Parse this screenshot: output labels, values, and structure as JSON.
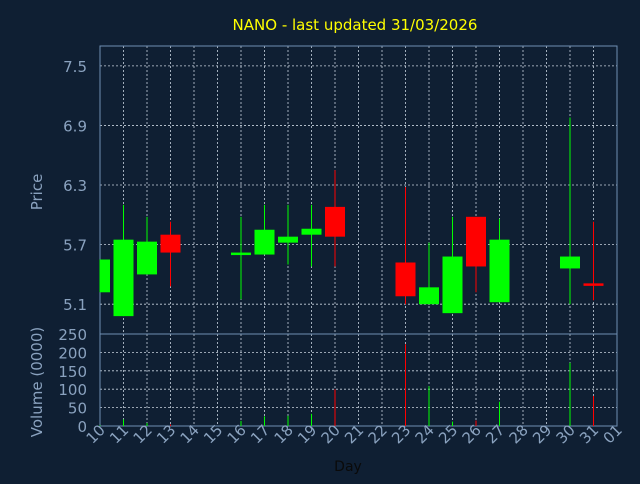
{
  "title": "NANO - last updated 31/03/2026",
  "colors": {
    "background": "#0f1f33",
    "plot_border": "#6f8fb3",
    "grid": "#c8d2de",
    "axis_text": "#8aa2bf",
    "title_text": "#ffff00",
    "xlabel_text": "#0a0a0a",
    "up": "#00ff00",
    "down": "#ff0000"
  },
  "chart_data": [
    {
      "type": "candlestick",
      "ylabel": "Price",
      "ylim": [
        4.8,
        7.7
      ],
      "yticks": [
        5.1,
        5.7,
        6.3,
        6.9,
        7.5
      ],
      "ytick_labels": [
        "5.1",
        "5.7",
        "6.3",
        "6.9",
        "7.5"
      ],
      "grid": true,
      "candles": [
        {
          "x": 10,
          "open": 5.22,
          "close": 5.55,
          "high": 5.55,
          "low": 5.22,
          "direction": "up"
        },
        {
          "x": 11,
          "open": 4.98,
          "close": 5.75,
          "high": 6.1,
          "low": 4.98,
          "direction": "up"
        },
        {
          "x": 12,
          "open": 5.4,
          "close": 5.73,
          "high": 5.98,
          "low": 5.4,
          "direction": "up"
        },
        {
          "x": 13,
          "open": 5.8,
          "close": 5.62,
          "high": 5.93,
          "low": 5.28,
          "direction": "down"
        },
        {
          "x": 16,
          "open": 5.6,
          "close": 5.62,
          "high": 5.98,
          "low": 5.15,
          "direction": "up"
        },
        {
          "x": 17,
          "open": 5.6,
          "close": 5.85,
          "high": 6.1,
          "low": 5.6,
          "direction": "up"
        },
        {
          "x": 18,
          "open": 5.72,
          "close": 5.78,
          "high": 6.1,
          "low": 5.5,
          "direction": "up"
        },
        {
          "x": 19,
          "open": 5.8,
          "close": 5.86,
          "high": 6.1,
          "low": 5.48,
          "direction": "up"
        },
        {
          "x": 20,
          "open": 6.08,
          "close": 5.78,
          "high": 6.45,
          "low": 5.48,
          "direction": "down"
        },
        {
          "x": 23,
          "open": 5.52,
          "close": 5.18,
          "high": 6.28,
          "low": 5.1,
          "direction": "down"
        },
        {
          "x": 24,
          "open": 5.1,
          "close": 5.27,
          "high": 5.72,
          "low": 5.1,
          "direction": "up"
        },
        {
          "x": 25,
          "open": 5.01,
          "close": 5.58,
          "high": 5.98,
          "low": 5.01,
          "direction": "up"
        },
        {
          "x": 26,
          "open": 5.98,
          "close": 5.48,
          "high": 5.98,
          "low": 5.22,
          "direction": "down"
        },
        {
          "x": 27,
          "open": 5.12,
          "close": 5.75,
          "high": 5.96,
          "low": 5.12,
          "direction": "up"
        },
        {
          "x": 30,
          "open": 5.46,
          "close": 5.58,
          "high": 6.98,
          "low": 5.1,
          "direction": "up"
        },
        {
          "x": 31,
          "open": 5.31,
          "close": 5.29,
          "high": 5.93,
          "low": 5.14,
          "direction": "down"
        }
      ]
    },
    {
      "type": "bar",
      "ylabel": "Volume (0000)",
      "xlabel": "Day",
      "ylim": [
        0,
        250
      ],
      "yticks": [
        0,
        50,
        100,
        150,
        200,
        250
      ],
      "ytick_labels": [
        "0",
        "50",
        "100",
        "150",
        "200",
        "250"
      ],
      "grid": true,
      "x_categories": [
        "10",
        "11",
        "12",
        "13",
        "14",
        "15",
        "16",
        "17",
        "18",
        "19",
        "20",
        "21",
        "22",
        "23",
        "24",
        "25",
        "26",
        "27",
        "28",
        "29",
        "30",
        "31",
        "01"
      ],
      "bars": [
        {
          "x": 10,
          "value": 2,
          "direction": "up"
        },
        {
          "x": 11,
          "value": 18,
          "direction": "up"
        },
        {
          "x": 12,
          "value": 8,
          "direction": "up"
        },
        {
          "x": 13,
          "value": 4,
          "direction": "down"
        },
        {
          "x": 16,
          "value": 14,
          "direction": "up"
        },
        {
          "x": 17,
          "value": 26,
          "direction": "up"
        },
        {
          "x": 18,
          "value": 28,
          "direction": "up"
        },
        {
          "x": 19,
          "value": 33,
          "direction": "up"
        },
        {
          "x": 20,
          "value": 100,
          "direction": "down"
        },
        {
          "x": 23,
          "value": 222,
          "direction": "down"
        },
        {
          "x": 24,
          "value": 108,
          "direction": "up"
        },
        {
          "x": 25,
          "value": 12,
          "direction": "up"
        },
        {
          "x": 26,
          "value": 15,
          "direction": "down"
        },
        {
          "x": 27,
          "value": 66,
          "direction": "up"
        },
        {
          "x": 30,
          "value": 172,
          "direction": "up"
        },
        {
          "x": 31,
          "value": 82,
          "direction": "down"
        }
      ]
    }
  ]
}
